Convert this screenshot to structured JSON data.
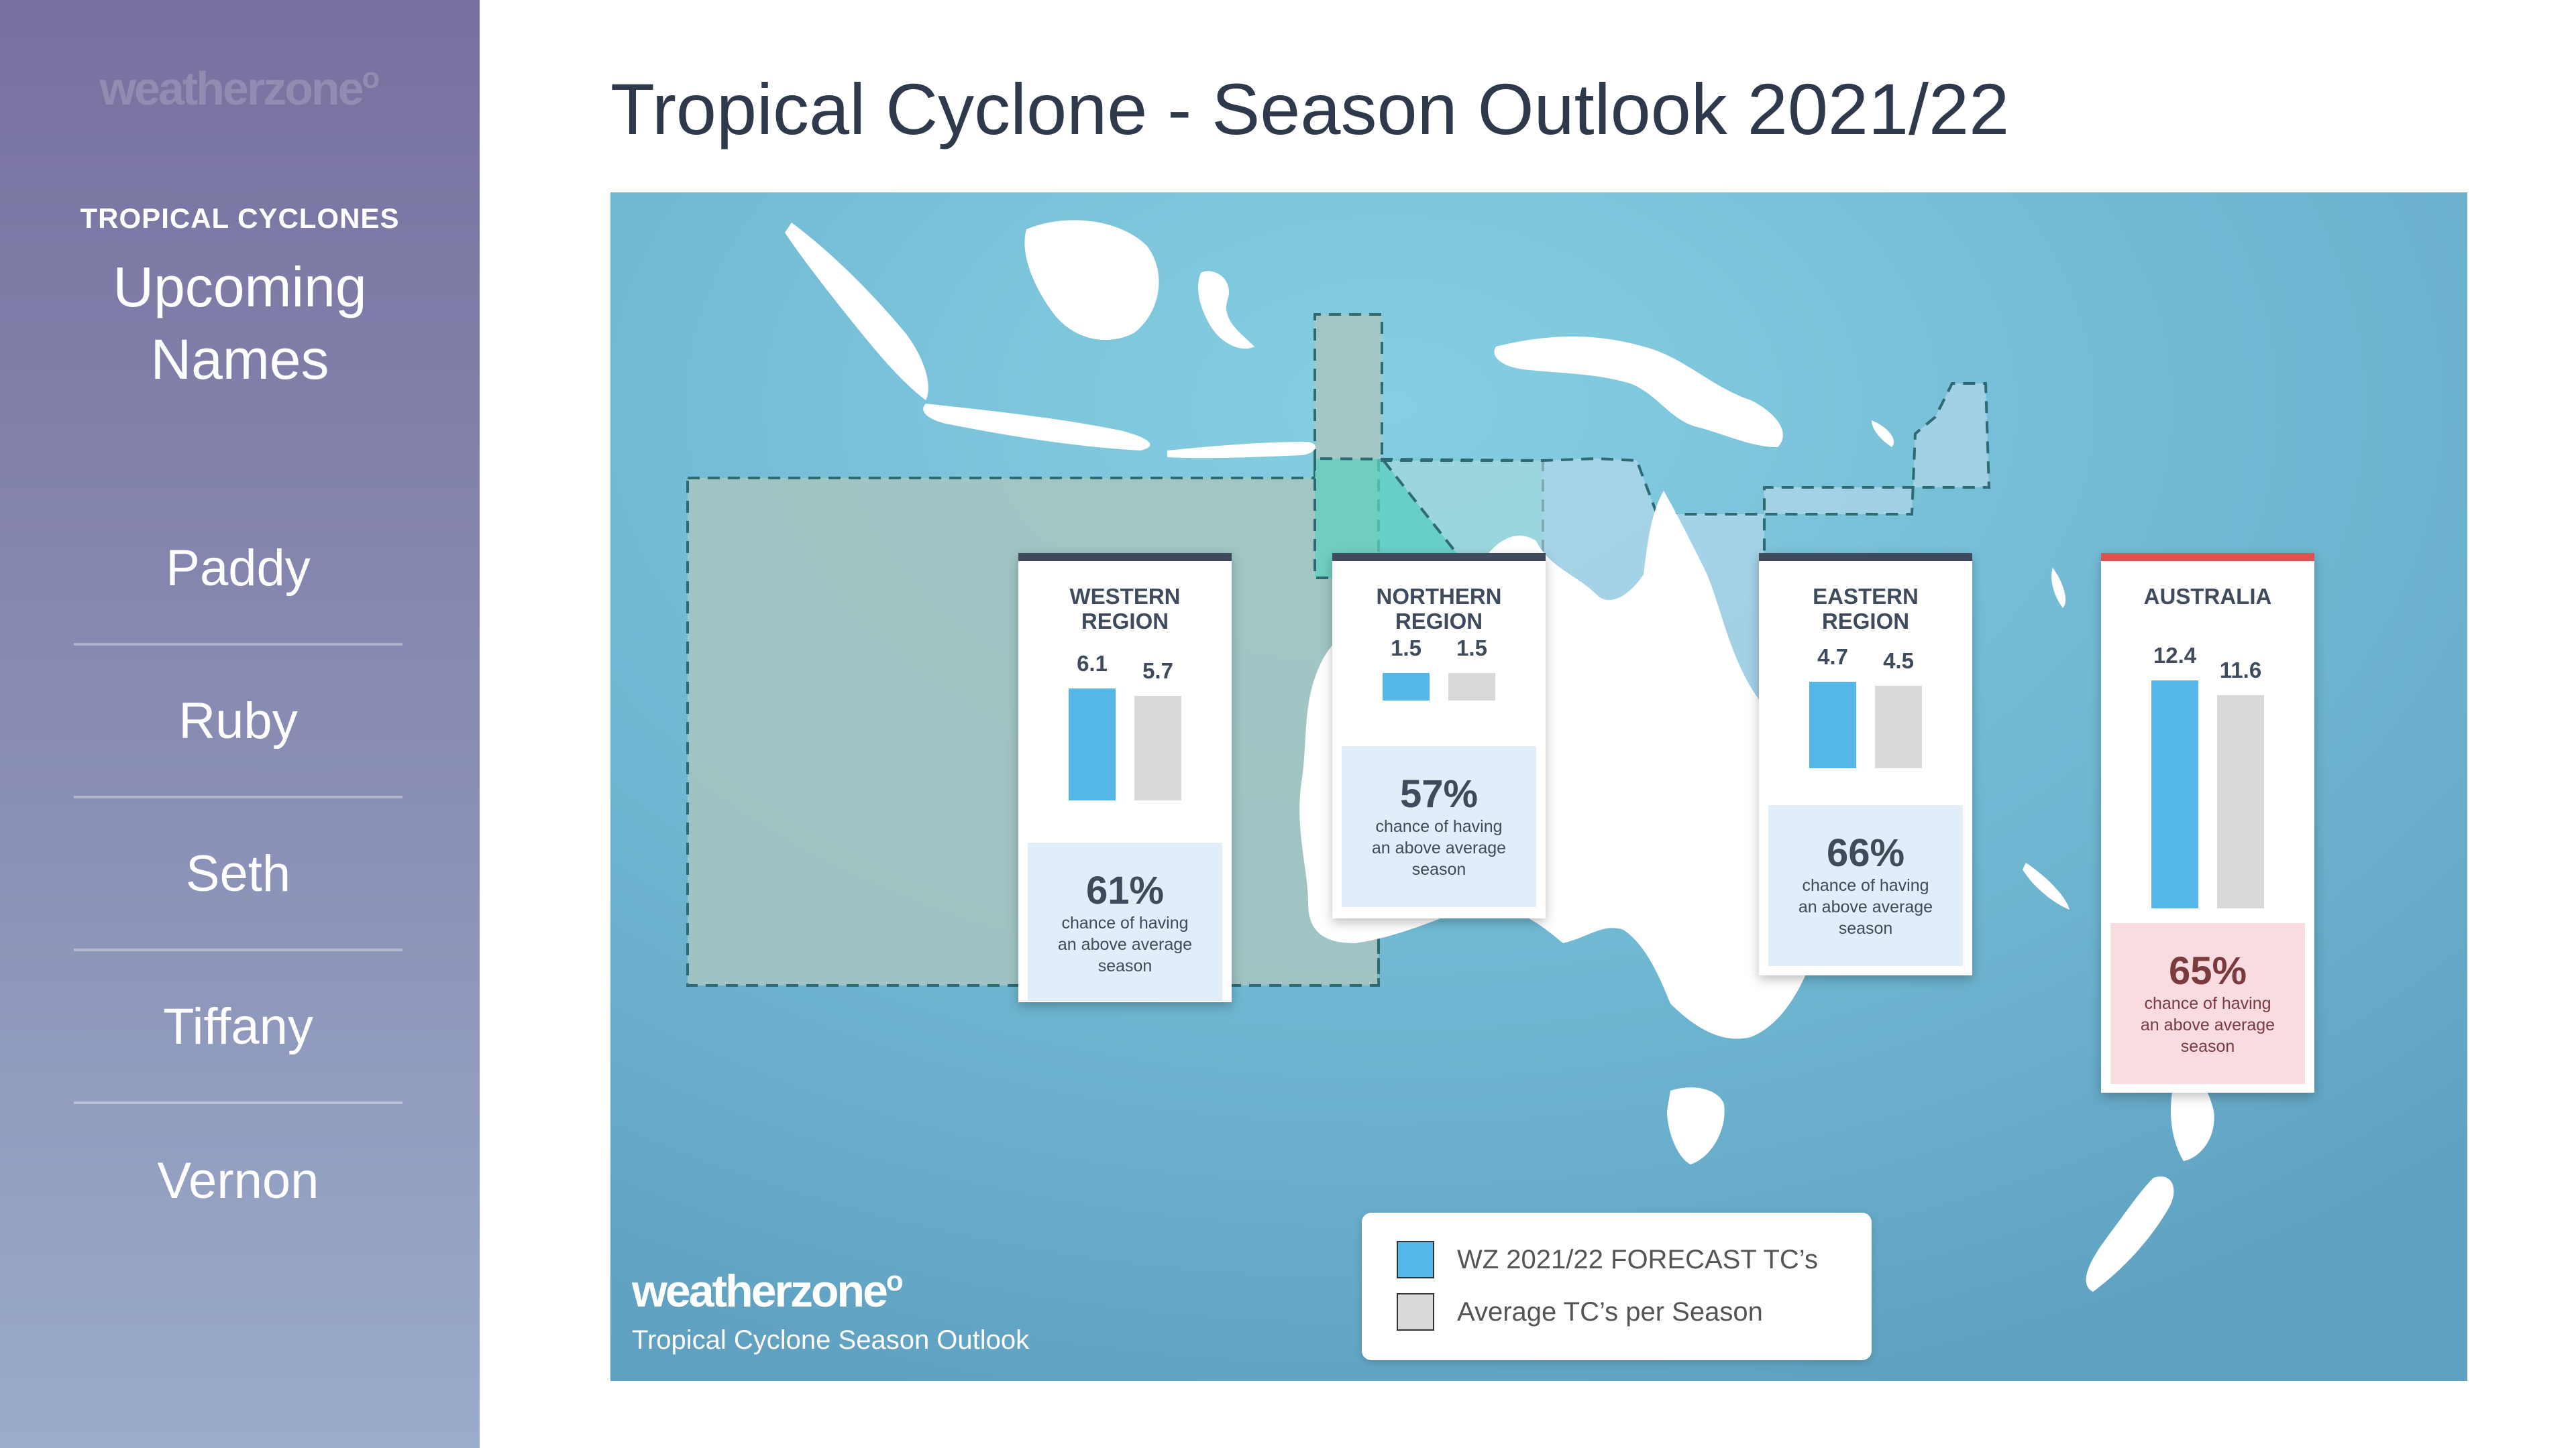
{
  "sidebar": {
    "logo": "weatherzone",
    "section_label": "TROPICAL CYCLONES",
    "heading_line1": "Upcoming",
    "heading_line2": "Names",
    "names": [
      "Paddy",
      "Ruby",
      "Seth",
      "Tiffany",
      "Vernon"
    ]
  },
  "page": {
    "title": "Tropical Cyclone - Season Outlook 2021/22"
  },
  "map": {
    "logo": "weatherzone",
    "subtitle": "Tropical Cyclone Season Outlook"
  },
  "legend": {
    "forecast_label": "WZ 2021/22 FORECAST TC’s",
    "average_label": "Average TC’s per Season"
  },
  "colors": {
    "forecast": "#54b7e8",
    "average": "#d9d9d9",
    "australia_accent": "#d9534f",
    "ocean": "#6eb6d2"
  },
  "chart_data": {
    "type": "bar",
    "series": [
      {
        "name": "WZ 2021/22 FORECAST TC’s",
        "values": [
          6.1,
          1.5,
          4.7,
          12.4
        ]
      },
      {
        "name": "Average TC’s per Season",
        "values": [
          5.7,
          1.5,
          4.5,
          11.6
        ]
      }
    ],
    "regions": [
      {
        "title_line1": "WESTERN",
        "title_line2": "REGION",
        "forecast": 6.1,
        "forecast_label": "6.1",
        "average": 5.7,
        "average_label": "5.7",
        "chance_pct": "61%",
        "chance_text1": "chance of having",
        "chance_text2": "an above average",
        "chance_text3": "season"
      },
      {
        "title_line1": "NORTHERN",
        "title_line2": "REGION",
        "forecast": 1.5,
        "forecast_label": "1.5",
        "average": 1.5,
        "average_label": "1.5",
        "chance_pct": "57%",
        "chance_text1": "chance of having",
        "chance_text2": "an above average",
        "chance_text3": "season"
      },
      {
        "title_line1": "EASTERN",
        "title_line2": "REGION",
        "forecast": 4.7,
        "forecast_label": "4.7",
        "average": 4.5,
        "average_label": "4.5",
        "chance_pct": "66%",
        "chance_text1": "chance of having",
        "chance_text2": "an above average",
        "chance_text3": "season"
      },
      {
        "title_line1": "AUSTRALIA",
        "title_line2": "",
        "forecast": 12.4,
        "forecast_label": "12.4",
        "average": 11.6,
        "average_label": "11.6",
        "chance_pct": "65%",
        "chance_text1": "chance of having",
        "chance_text2": "an above average",
        "chance_text3": "season"
      }
    ]
  }
}
